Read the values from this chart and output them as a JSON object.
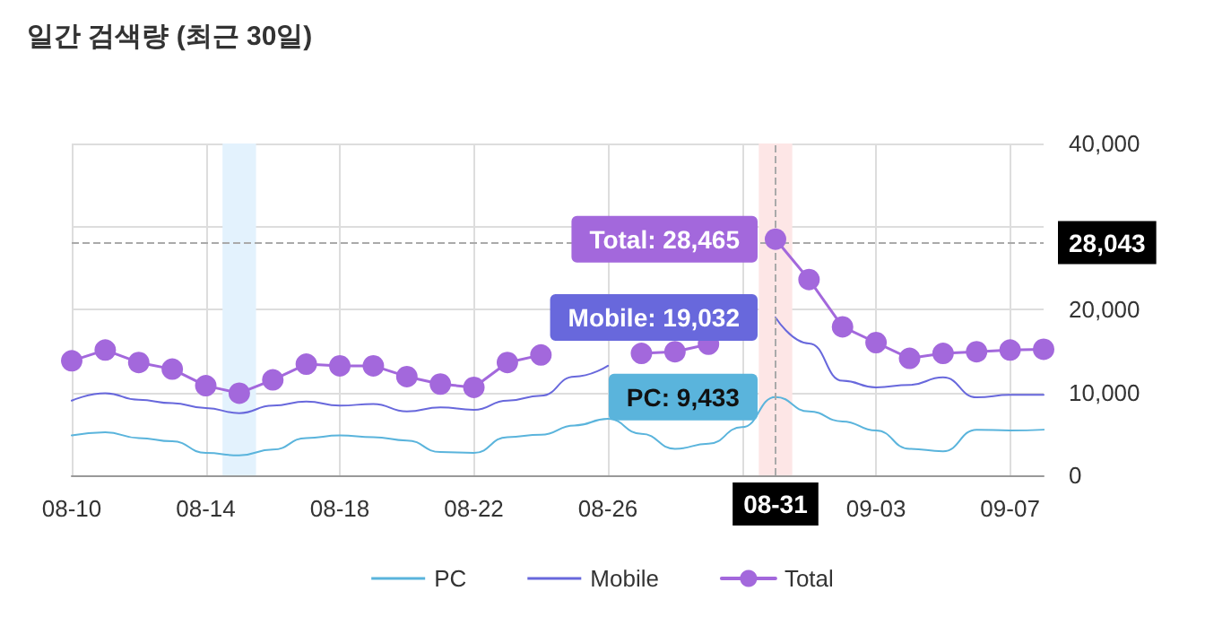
{
  "chart_data": {
    "type": "line",
    "title": "일간 검색량 (최근 30일)",
    "x": [
      "--08-10",
      "--08-11",
      "--08-12",
      "--08-13",
      "--08-14",
      "--08-15",
      "--08-16",
      "--08-17",
      "--08-18",
      "--08-19",
      "--08-20",
      "--08-21",
      "--08-22",
      "--08-23",
      "--08-24",
      "--08-25",
      "--08-26",
      "--08-27",
      "--08-28",
      "--08-29",
      "--08-30",
      "--08-31",
      "--09-01",
      "--09-02",
      "--09-03",
      "--09-04",
      "--09-05",
      "--09-06",
      "--09-07",
      "--09-08"
    ],
    "series": [
      {
        "name": "PC",
        "color": "#5ab4dc",
        "marker": "none",
        "values": [
          4800.0,
          5200.0,
          4500.0,
          4100.0,
          2700.0,
          2400.0,
          3100.0,
          4500.0,
          4800.0,
          4600.0,
          4200.0,
          2800.0,
          2700.0,
          4600.0,
          4900.0,
          6000.0,
          6800.0,
          5000.0,
          3200.0,
          3800.0,
          5800.0,
          9433,
          7700.0,
          6500.0,
          5400.0,
          3200.0,
          2900.0,
          5500.0,
          5400.0,
          5500.0
        ]
      },
      {
        "name": "Mobile",
        "color": "#6868dc",
        "marker": "none",
        "values": [
          9000.0,
          9900.0,
          9100.0,
          8700.0,
          8100.0,
          7500.0,
          8400.0,
          8900.0,
          8400.0,
          8600.0,
          7700.0,
          8200.0,
          7900.0,
          9000.0,
          9600.0,
          11900.0,
          13200.0,
          null,
          null,
          null,
          null,
          19032,
          15900.0,
          11400.0,
          10600.0,
          10900.0,
          11800.0,
          9400.0,
          9700.0,
          9700.0
        ]
      },
      {
        "name": "Total",
        "color": "#a368dc",
        "marker": "circle",
        "values": [
          13800.0,
          15100.0,
          13600.0,
          12800.0,
          10800.0,
          9900.0,
          11500.0,
          13400.0,
          13200.0,
          13200.0,
          11900.0,
          11000.0,
          10600.0,
          13600.0,
          14500.0,
          null,
          null,
          14700.0,
          14900.0,
          15800.0,
          null,
          28465,
          23600.0,
          17900.0,
          16000.0,
          14100.0,
          14700.0,
          14900.0,
          15100.0,
          15200.0
        ]
      }
    ],
    "xlim": [
      "--08-10",
      "--09-08"
    ],
    "xticks": [
      {
        "value": "--08-10",
        "label": "08-10"
      },
      {
        "value": "--08-14",
        "label": "08-14"
      },
      {
        "value": "--08-18",
        "label": "08-18"
      },
      {
        "value": "--08-22",
        "label": "08-22"
      },
      {
        "value": "--08-26",
        "label": "08-26"
      },
      {
        "value": "--08-30",
        "label": null
      },
      {
        "value": "--09-03",
        "label": "09-03"
      },
      {
        "value": "--09-07",
        "label": "09-07"
      }
    ],
    "ylim": [
      0,
      40000
    ],
    "yticks": [
      {
        "value": 0,
        "label": "0"
      },
      {
        "value": 10000,
        "label": "10,000"
      },
      {
        "value": 20000,
        "label": "20,000"
      },
      {
        "value": 30000,
        "label": null
      },
      {
        "value": 40000,
        "label": "40,000"
      }
    ],
    "grid": true,
    "legend": "bottom",
    "ref_lines": [
      {
        "axis": "y",
        "value": 28043,
        "label": "28,043",
        "color": "#aaaaaa",
        "line_style": "dashed"
      },
      {
        "axis": "x",
        "value": "--08-31",
        "label": "08-31",
        "color": "#aaaaaa",
        "line_style": "dashed"
      }
    ],
    "bands": [
      {
        "axis": "x",
        "from": "--08-14T12:00",
        "to": "--08-15T12:00",
        "color": "#e3f2fd"
      },
      {
        "axis": "x",
        "from": "--08-30T12:00",
        "to": "--08-31T12:00",
        "color": "#fde6e6"
      }
    ],
    "annotations": [
      {
        "text": "Total: 28,465",
        "x": "--08-31",
        "y": 28465
      },
      {
        "text": "Mobile: 19,032",
        "x": "--08-31",
        "y": 19032
      },
      {
        "text": "PC: 9,433",
        "x": "--08-31",
        "y": 9433
      }
    ]
  }
}
